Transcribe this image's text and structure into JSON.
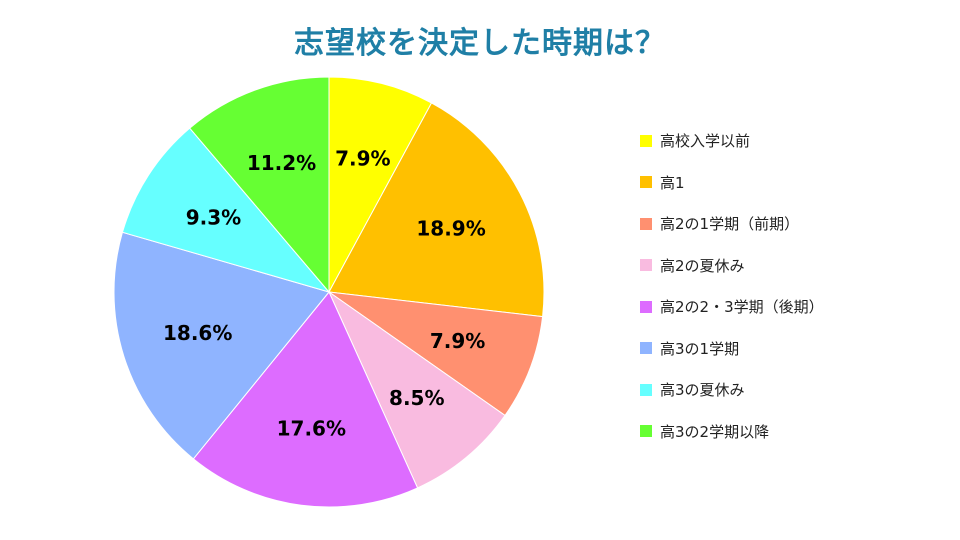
{
  "chart_data": {
    "type": "pie",
    "title": "志望校を決定した時期は？",
    "slices": [
      {
        "label": "高校入学以前",
        "value": 7.9,
        "display": "7.9%",
        "color": "#ffff00"
      },
      {
        "label": "高1",
        "value": 18.9,
        "display": "18.9%",
        "color": "#ffc000"
      },
      {
        "label": "高2の1学期（前期）",
        "value": 7.9,
        "display": "7.9%",
        "color": "#ff9070"
      },
      {
        "label": "高2の夏休み",
        "value": 8.5,
        "display": "8.5%",
        "color": "#f9bbe0"
      },
      {
        "label": "高2の2・3学期（後期）",
        "value": 17.6,
        "display": "17.6%",
        "color": "#dd6cff"
      },
      {
        "label": "高3の1学期",
        "value": 18.6,
        "display": "18.6%",
        "color": "#8fb4ff"
      },
      {
        "label": "高3の夏休み",
        "value": 9.3,
        "display": "9.3%",
        "color": "#66ffff"
      },
      {
        "label": "高3の2学期以降",
        "value": 11.2,
        "display": "11.2%",
        "color": "#66ff33"
      }
    ],
    "start": "12 o'clock",
    "direction": "clockwise",
    "legend_position": "right"
  }
}
